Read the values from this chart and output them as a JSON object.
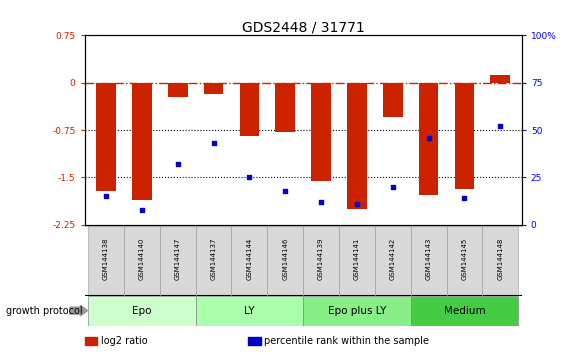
{
  "title": "GDS2448 / 31771",
  "samples": [
    "GSM144138",
    "GSM144140",
    "GSM144147",
    "GSM144137",
    "GSM144144",
    "GSM144146",
    "GSM144139",
    "GSM144141",
    "GSM144142",
    "GSM144143",
    "GSM144145",
    "GSM144148"
  ],
  "log2_ratio": [
    -1.72,
    -1.85,
    -0.22,
    -0.18,
    -0.85,
    -0.78,
    -1.55,
    -2.0,
    -0.55,
    -1.78,
    -1.68,
    0.12
  ],
  "percentile_rank": [
    15,
    8,
    32,
    43,
    25,
    18,
    12,
    11,
    20,
    46,
    14,
    52
  ],
  "ylim_left": [
    -2.25,
    0.75
  ],
  "ylim_right": [
    0,
    100
  ],
  "yticks_left": [
    -2.25,
    -1.5,
    -0.75,
    0,
    0.75
  ],
  "yticks_right": [
    0,
    25,
    50,
    75,
    100
  ],
  "hline_y": 0,
  "dotted_lines": [
    -0.75,
    -1.5
  ],
  "groups": [
    {
      "label": "Epo",
      "start": 0,
      "end": 3,
      "color": "#ccffcc"
    },
    {
      "label": "LY",
      "start": 3,
      "end": 6,
      "color": "#aaffaa"
    },
    {
      "label": "Epo plus LY",
      "start": 6,
      "end": 9,
      "color": "#88ee88"
    },
    {
      "label": "Medium",
      "start": 9,
      "end": 12,
      "color": "#44cc44"
    }
  ],
  "bar_color": "#cc2200",
  "dot_color": "#0000cc",
  "bar_width": 0.55,
  "growth_protocol_label": "growth protocol",
  "legend_items": [
    {
      "color": "#cc2200",
      "label": "log2 ratio"
    },
    {
      "color": "#0000cc",
      "label": "percentile rank within the sample"
    }
  ],
  "hline_color": "#cc2200",
  "dotted_color": "#000000",
  "title_fontsize": 10,
  "tick_fontsize": 6.5,
  "label_fontsize": 7,
  "group_label_fontsize": 7.5,
  "sample_fontsize": 5.0
}
